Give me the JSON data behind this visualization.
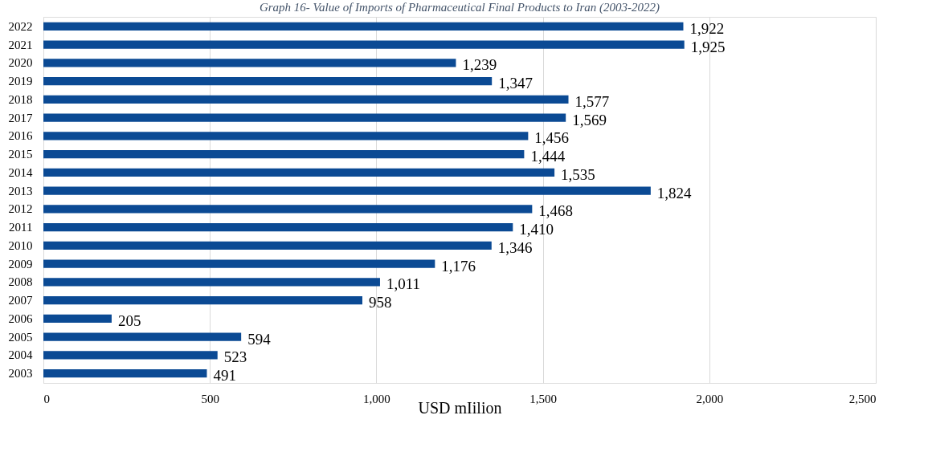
{
  "chart_data": {
    "type": "bar",
    "orientation": "horizontal",
    "title": "Graph 16- Value of Imports of Pharmaceutical Final Products to Iran (2003-2022)",
    "xlabel": "USD mIilion",
    "categories": [
      "2022",
      "2021",
      "2020",
      "2019",
      "2018",
      "2017",
      "2016",
      "2015",
      "2014",
      "2013",
      "2012",
      "2011",
      "2010",
      "2009",
      "2008",
      "2007",
      "2006",
      "2005",
      "2004",
      "2003"
    ],
    "values": [
      1922,
      1925,
      1239,
      1347,
      1577,
      1569,
      1456,
      1444,
      1535,
      1824,
      1468,
      1410,
      1346,
      1176,
      1011,
      958,
      205,
      594,
      523,
      491
    ],
    "color": "#0b4a94",
    "xlim": [
      0,
      2500
    ],
    "xticks": [
      0,
      500,
      {
        "value": 1000,
        "label": "1,000"
      },
      {
        "value": 1500,
        "label": "1,500"
      },
      {
        "value": 2000,
        "label": "2,000"
      },
      {
        "value": 2500,
        "label": "2,500"
      }
    ],
    "grid": "x",
    "value_labels": [
      "1,922",
      "1,925",
      "1,239",
      "1,347",
      "1,577",
      "1,569",
      "1,456",
      "1,444",
      "1,535",
      "1,824",
      "1,468",
      "1,410",
      "1,346",
      "1,176",
      "1,011",
      "958",
      "205",
      "594",
      "523",
      "491"
    ]
  }
}
